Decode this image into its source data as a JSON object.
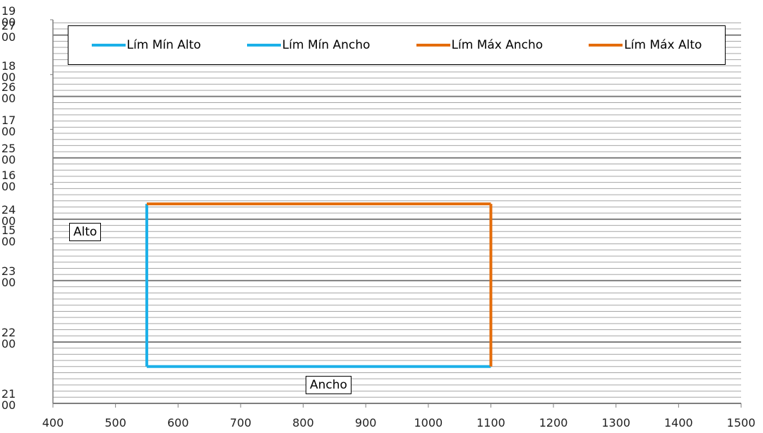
{
  "chart_data": {
    "type": "line",
    "xlabel": "Ancho",
    "ylabel": "Alto",
    "xlim": [
      400,
      1500
    ],
    "xticks": [
      400,
      500,
      600,
      700,
      800,
      900,
      1000,
      1100,
      1200,
      1300,
      1400,
      1500
    ],
    "ylim": [
      2100,
      2725
    ],
    "yticks": [
      2100,
      2200,
      2300,
      2400,
      2500,
      2600,
      2700
    ],
    "y2lim": [
      1200,
      1900
    ],
    "y2ticks": [
      1500,
      1600,
      1700,
      1800,
      1900
    ],
    "grid": true,
    "minor_grid": true,
    "legend": "top",
    "series": [
      {
        "name": "Lím Mín Alto",
        "color": "#1cb0e8",
        "x": [
          550,
          550
        ],
        "values": [
          2160,
          2425
        ]
      },
      {
        "name": "Lím Mín Ancho",
        "color": "#1cb0e8",
        "x": [
          550,
          1100
        ],
        "values": [
          2160,
          2160
        ]
      },
      {
        "name": "Lím Máx Ancho",
        "color": "#e46c0a",
        "x": [
          1100,
          1100
        ],
        "values": [
          2160,
          2425
        ]
      },
      {
        "name": "Lím Máx Alto",
        "color": "#e46c0a",
        "x": [
          550,
          1100
        ],
        "values": [
          2425,
          2425
        ]
      }
    ]
  }
}
